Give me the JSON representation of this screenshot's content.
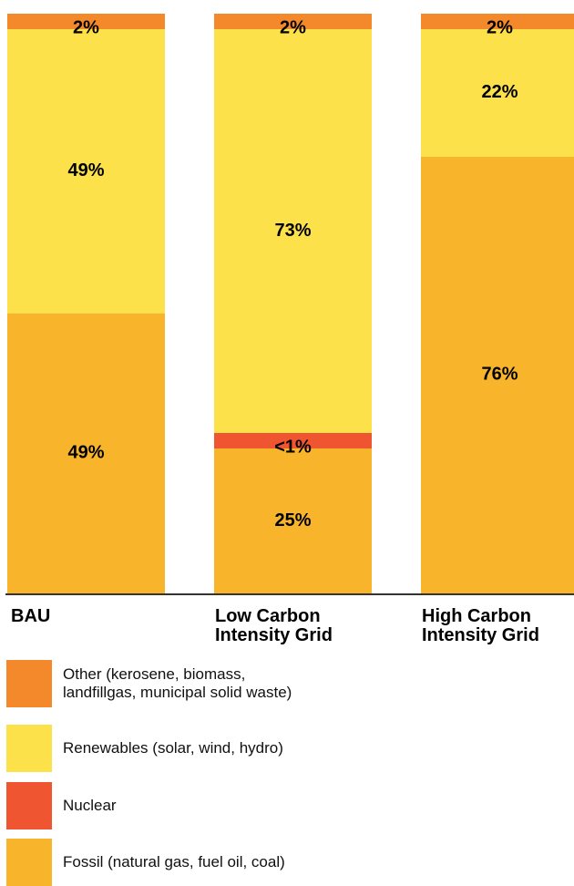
{
  "chart_data": {
    "type": "bar",
    "stacked": true,
    "categories": [
      "BAU",
      "Low Carbon Intensity Grid",
      "High Carbon Intensity Grid"
    ],
    "category_lines": [
      [
        "BAU"
      ],
      [
        "Low Carbon",
        "Intensity Grid"
      ],
      [
        "High Carbon",
        "Intensity Grid"
      ]
    ],
    "series": [
      {
        "name": "Fossil (natural gas, fuel oil, coal)",
        "color": "#F8B52C",
        "values": [
          49,
          25,
          76
        ],
        "labels": [
          "49%",
          "25%",
          "76%"
        ]
      },
      {
        "name": "Nuclear",
        "color": "#EF5530",
        "values": [
          0,
          0.5,
          0
        ],
        "labels": [
          "",
          "<1%",
          ""
        ]
      },
      {
        "name": "Renewables (solar, wind, hydro)",
        "color": "#FDE14A",
        "values": [
          49,
          73,
          22
        ],
        "labels": [
          "49%",
          "73%",
          "22%"
        ]
      },
      {
        "name": "Other (kerosene, biomass, landfillgas, municipal solid waste)",
        "color": "#F4892C",
        "values": [
          2,
          2,
          2
        ],
        "labels": [
          "2%",
          "2%",
          "2%"
        ]
      }
    ],
    "legend": [
      {
        "lines": [
          "Other (kerosene, biomass,",
          "landfillgas, municipal solid waste)"
        ],
        "color": "#F4892C"
      },
      {
        "lines": [
          "Renewables (solar, wind, hydro)"
        ],
        "color": "#FDE14A"
      },
      {
        "lines": [
          "Nuclear"
        ],
        "color": "#EF5530"
      },
      {
        "lines": [
          "Fossil (natural gas, fuel oil, coal)"
        ],
        "color": "#F8B52C"
      }
    ],
    "legend_position": "bottom",
    "grid": false,
    "ylim": [
      0,
      100
    ]
  }
}
